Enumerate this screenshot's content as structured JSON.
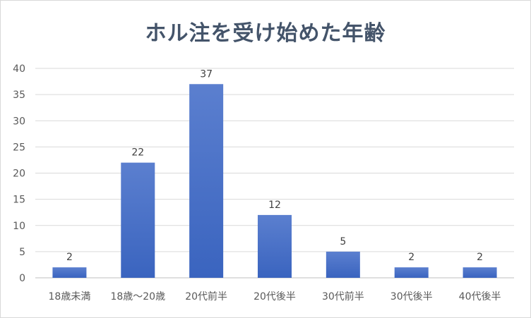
{
  "chart_data": {
    "type": "bar",
    "title": "ホル注を受け始めた年齢",
    "categories": [
      "18歳未満",
      "18歳～20歳",
      "20代前半",
      "20代後半",
      "30代前半",
      "30代後半",
      "40代後半"
    ],
    "values": [
      2,
      22,
      37,
      12,
      5,
      2,
      2
    ],
    "yticks": [
      0,
      5,
      10,
      15,
      20,
      25,
      30,
      35,
      40
    ],
    "ylim": [
      0,
      40
    ],
    "grid": true,
    "legend": "none",
    "bar_color_top": "#5b7fcf",
    "bar_color_bottom": "#3a64bf",
    "data_labels": true
  }
}
